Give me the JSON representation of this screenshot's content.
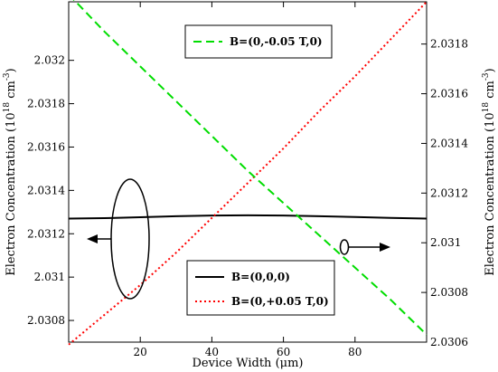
{
  "chart_data": {
    "type": "line",
    "xlabel": "Device Width (μm)",
    "xlim": [
      0,
      100
    ],
    "x_ticks": [
      20,
      40,
      60,
      80
    ],
    "ylabel_left": "Electron Concentration (10^18 cm^-3)",
    "ylabel_left_parts": [
      "Electron Concentration (10",
      "18",
      " cm",
      "-3",
      ")"
    ],
    "ylim_left": [
      2.0307,
      2.03227
    ],
    "y_ticks_left": [
      2.0308,
      2.031,
      2.0312,
      2.0314,
      2.0316,
      2.0318,
      2.032
    ],
    "ylabel_right": "Electron Concentration (10^18 cm^-3)",
    "ylabel_right_parts": [
      "Electron Concentration (10",
      "18",
      " cm",
      "-3",
      ")"
    ],
    "ylim_right": [
      2.0306,
      2.03197
    ],
    "y_ticks_right": [
      2.0306,
      2.0308,
      2.031,
      2.0312,
      2.0314,
      2.0316,
      2.0318
    ],
    "series": [
      {
        "name": "B=(0,0,0)",
        "axis": "left",
        "color": "#000000",
        "dash": "solid",
        "x": [
          0,
          10,
          20,
          30,
          40,
          50,
          60,
          70,
          80,
          90,
          100
        ],
        "y": [
          2.03127,
          2.031272,
          2.031276,
          2.031281,
          2.031284,
          2.031285,
          2.031284,
          2.031281,
          2.031277,
          2.031273,
          2.03127
        ]
      },
      {
        "name": "B=(0,+0.05 T,0)",
        "axis": "right",
        "color": "#ff0000",
        "dash": "dotted",
        "x": [
          0,
          10,
          20,
          30,
          40,
          50,
          60,
          70,
          80,
          90,
          100
        ],
        "y": [
          2.03059,
          2.03071,
          2.03083,
          2.03096,
          2.0311,
          2.03124,
          2.03138,
          2.03153,
          2.03167,
          2.03182,
          2.03197
        ]
      },
      {
        "name": "B=(0,-0.05 T,0)",
        "axis": "right",
        "color": "#00dd00",
        "dash": "dashed",
        "x": [
          0,
          10,
          20,
          30,
          40,
          50,
          60,
          70,
          80,
          90,
          100
        ],
        "y": [
          2.032,
          2.03185,
          2.03171,
          2.03157,
          2.03143,
          2.03129,
          2.03116,
          2.03103,
          2.0309,
          2.03077,
          2.03063
        ]
      }
    ],
    "legends": [
      {
        "position": "top-center",
        "entries": [
          "B=(0,-0.05 T,0)"
        ]
      },
      {
        "position": "bottom-center",
        "entries": [
          "B=(0,0,0)",
          "B=(0,+0.05 T,0)"
        ]
      }
    ],
    "annotations": [
      {
        "shape": "ellipse",
        "arrow": "left",
        "meaning": "curves in ellipse refer to left axis"
      },
      {
        "shape": "ellipse",
        "arrow": "right",
        "meaning": "curves in ellipse refer to right axis"
      }
    ],
    "grid": false
  }
}
